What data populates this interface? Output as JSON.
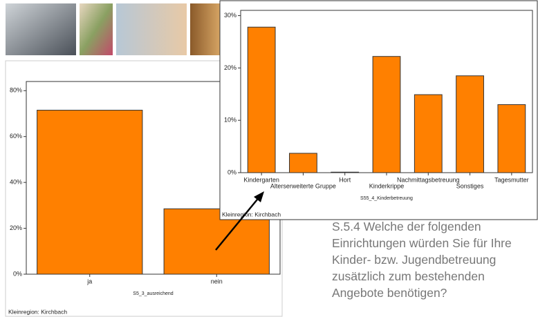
{
  "chart_data": [
    {
      "type": "bar",
      "x_label": "S5_3_ausreichend",
      "footnote": "Kleinregion: Kirchbach",
      "categories": [
        "ja",
        "nein"
      ],
      "values": [
        71.5,
        28.5
      ],
      "color": "#ff8000",
      "ylim": [
        0,
        84
      ],
      "yticks": [
        {
          "value": 0,
          "label": "0%"
        },
        {
          "value": 20,
          "label": "20%"
        },
        {
          "value": 40,
          "label": "40%"
        },
        {
          "value": 60,
          "label": "60%"
        },
        {
          "value": 80,
          "label": "80%"
        }
      ],
      "grid": false
    },
    {
      "type": "bar",
      "x_label": "S55_4_Kinderbetreuung",
      "footnote": "Kleinregion: Kirchbach",
      "categories": [
        "Kindergarten",
        "Alterserweiterte Gruppe",
        "Hort",
        "Kinderkrippe",
        "Nachmittagsbetreuung",
        "Sonstiges",
        "Tagesmutter"
      ],
      "values": [
        27.8,
        3.7,
        0.1,
        22.2,
        14.9,
        18.5,
        13.0
      ],
      "color": "#ff8000",
      "ylim": [
        0,
        31
      ],
      "yticks": [
        {
          "value": 0,
          "label": "0%"
        },
        {
          "value": 10,
          "label": "10%"
        },
        {
          "value": 20,
          "label": "20%"
        },
        {
          "value": 30,
          "label": "30%"
        }
      ],
      "grid": false
    }
  ],
  "question": "S.5.4 Welche der folgenden Einrichtungen würden Sie für Ihre Kinder- bzw. Jugendbetreuung zusätzlich zum bestehenden Angebote benötigen?"
}
